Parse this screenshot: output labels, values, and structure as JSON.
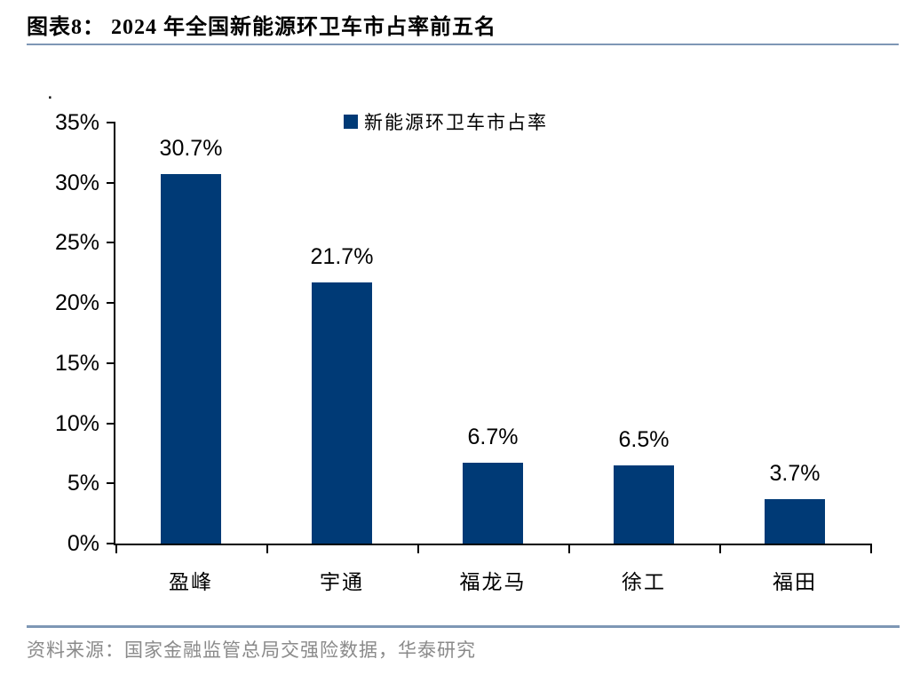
{
  "header": {
    "title": "图表8： 2024 年全国新能源环卫车市占率前五名"
  },
  "chart_data": {
    "type": "bar",
    "title": "2024 年全国新能源环卫车市占率前五名",
    "categories": [
      "盈峰",
      "宇通",
      "福龙马",
      "徐工",
      "福田"
    ],
    "series": [
      {
        "name": "新能源环卫车市占率",
        "values": [
          30.7,
          21.7,
          6.7,
          6.5,
          3.7
        ]
      }
    ],
    "value_labels": [
      "30.7%",
      "21.7%",
      "6.7%",
      "6.5%",
      "3.7%"
    ],
    "xlabel": "",
    "ylabel": "",
    "ylim": [
      0,
      35
    ],
    "ytick_step": 5,
    "ytick_labels": [
      "0%",
      "5%",
      "10%",
      "15%",
      "20%",
      "25%",
      "30%",
      "35%"
    ],
    "grid": false,
    "legend": {
      "label": "新能源环卫车市占率",
      "position": "top-center"
    }
  },
  "misc": {
    "stray_dot": "."
  },
  "colors": {
    "bar": "#003a76",
    "title_underline": "#7e97b5",
    "separator": "#7e97b5",
    "footer_text": "#8a8a8a",
    "axis": "#000000"
  },
  "footer": {
    "source": "资料来源：国家金融监管总局交强险数据，华泰研究"
  }
}
